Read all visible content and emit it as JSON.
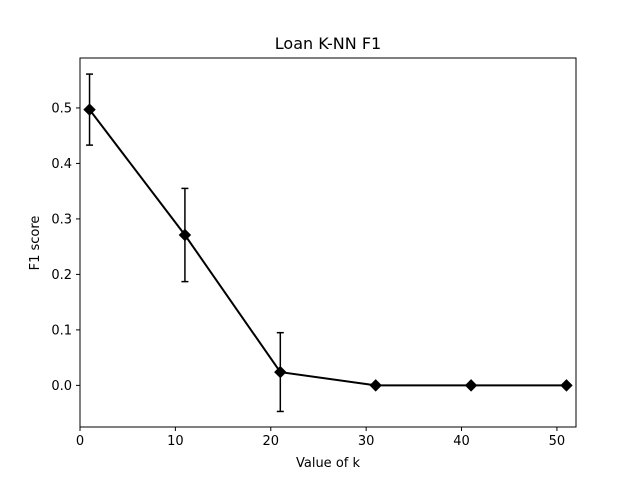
{
  "chart_data": {
    "type": "line",
    "title": "Loan K-NN F1",
    "xlabel": "Value of k",
    "ylabel": "F1 score",
    "xlim": [
      0,
      52
    ],
    "ylim": [
      -0.075,
      0.59
    ],
    "xticks": [
      0,
      10,
      20,
      30,
      40,
      50
    ],
    "yticks": [
      0.0,
      0.1,
      0.2,
      0.3,
      0.4,
      0.5
    ],
    "x": [
      1,
      11,
      21,
      31,
      41,
      51
    ],
    "series": [
      {
        "values": [
          0.497,
          0.271,
          0.024,
          0.0,
          0.0,
          0.0
        ],
        "error": [
          0.064,
          0.084,
          0.071,
          0.0,
          0.0,
          0.0
        ],
        "color": "#000000",
        "marker": "diamond"
      }
    ],
    "grid": false,
    "legend": false
  }
}
